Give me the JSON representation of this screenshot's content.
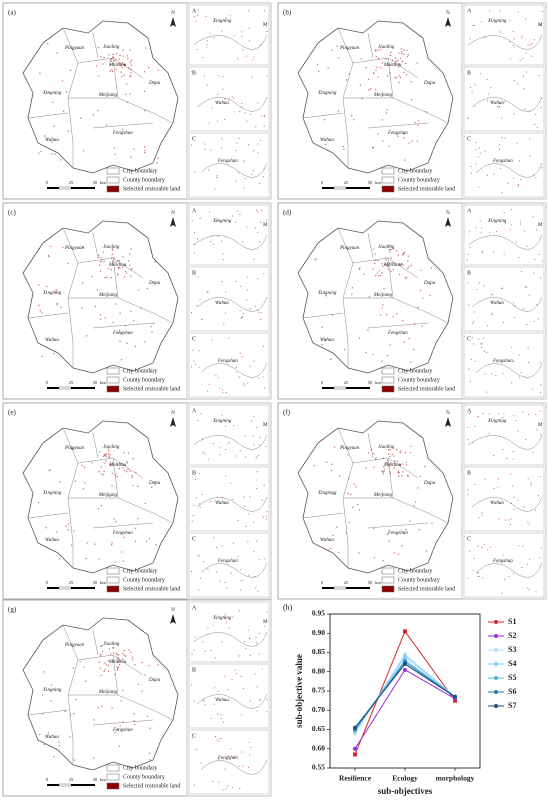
{
  "panel_labels": [
    "(a)",
    "(b)",
    "(c)",
    "(d)",
    "(e)",
    "(f)",
    "(g)"
  ],
  "map_text": {
    "north": "N",
    "places": [
      "Pingyuan",
      "Jiaoling",
      "Meizhou",
      "Meijiang",
      "Dapu",
      "Xingning",
      "Fengshun",
      "Wuhua"
    ],
    "inset_labels": [
      "A",
      "B",
      "C"
    ],
    "inset_places": [
      "Xingning",
      "Wuhua",
      "Fengshun"
    ],
    "inset_mark": "M",
    "scale_labels": [
      "0",
      "25",
      "50",
      "km"
    ],
    "legend": [
      "City boundary",
      "County boundary",
      "Selected restorable land"
    ]
  },
  "chart_data": {
    "type": "line",
    "panel_label": "(h)",
    "x_label": "sub-objectives",
    "y_label": "sub-objective value",
    "categories": [
      "Resilience",
      "Ecology",
      "morphology"
    ],
    "ylim": [
      0.55,
      0.95
    ],
    "yticks": [
      0.55,
      {
        "value": 0.6,
        "label": "0.60"
      },
      0.65,
      {
        "value": 0.7,
        "label": "0.70"
      },
      0.75,
      {
        "value": 0.8,
        "label": "0.80"
      },
      0.85,
      {
        "value": 0.9,
        "label": "0.90"
      },
      0.95
    ],
    "series": [
      {
        "name": "S1",
        "color": "#d62728",
        "values": [
          0.585,
          0.905,
          0.725
        ]
      },
      {
        "name": "S2",
        "color": "#9b30d9",
        "values": [
          0.6,
          0.805,
          0.73
        ]
      },
      {
        "name": "S3",
        "color": "#b3e3f7",
        "values": [
          0.64,
          0.845,
          0.735
        ]
      },
      {
        "name": "S4",
        "color": "#87cefa",
        "values": [
          0.645,
          0.84,
          0.735
        ]
      },
      {
        "name": "S5",
        "color": "#4fb0e0",
        "values": [
          0.65,
          0.83,
          0.735
        ]
      },
      {
        "name": "S6",
        "color": "#2a7fb8",
        "values": [
          0.65,
          0.825,
          0.735
        ]
      },
      {
        "name": "S7",
        "color": "#1a4e80",
        "values": [
          0.655,
          0.82,
          0.735
        ]
      }
    ]
  }
}
